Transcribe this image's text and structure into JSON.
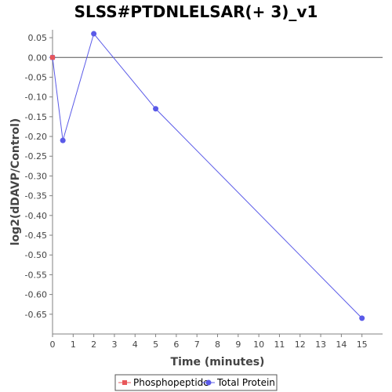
{
  "chart_data": {
    "type": "line",
    "title": "SLSS#PTDNLELSAR(+ 3)_v1",
    "xlabel": "Time (minutes)",
    "ylabel": "log2(dDAVP/Control)",
    "xlim": [
      0,
      16
    ],
    "ylim": [
      -0.7,
      0.07
    ],
    "x_ticks": [
      "0",
      "1",
      "2",
      "3",
      "4",
      "5",
      "6",
      "7",
      "8",
      "9",
      "10",
      "11",
      "12",
      "13",
      "14",
      "15"
    ],
    "y_ticks": [
      "0.05",
      "0.00",
      "-0.05",
      "-0.10",
      "-0.15",
      "-0.20",
      "-0.25",
      "-0.30",
      "-0.35",
      "-0.40",
      "-0.45",
      "-0.50",
      "-0.55",
      "-0.60",
      "-0.65"
    ],
    "grid": false,
    "zero_line": true,
    "legend_position": "bottom",
    "series": [
      {
        "name": "Phosphopeptide",
        "color": "#e8575a",
        "marker": "square",
        "x": [
          0
        ],
        "y": [
          0.0
        ]
      },
      {
        "name": "Total Protein",
        "color": "#5a5ae8",
        "marker": "circle",
        "x": [
          0,
          0.5,
          2,
          5,
          15
        ],
        "y": [
          0.0,
          -0.21,
          0.06,
          -0.13,
          -0.66
        ]
      }
    ]
  }
}
